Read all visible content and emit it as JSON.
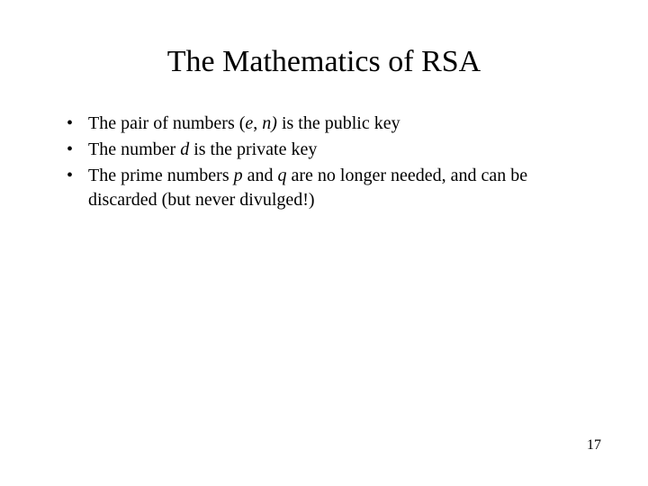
{
  "slide": {
    "title": "The Mathematics of RSA",
    "bullets": [
      {
        "pre": "The pair of numbers (",
        "var1": "e",
        "mid1": ", ",
        "var2": "n)",
        "post": " is the public key"
      },
      {
        "pre": "The number ",
        "var1": "d",
        "post": " is the private key"
      },
      {
        "pre": "The prime numbers ",
        "var1": "p",
        "mid1": " and ",
        "var2": "q",
        "post": " are no longer needed, and can be discarded (but never divulged!)"
      }
    ],
    "page_number": "17"
  },
  "style": {
    "background_color": "#ffffff",
    "text_color": "#000000",
    "title_fontsize": 34,
    "body_fontsize": 20,
    "page_number_fontsize": 16,
    "font_family": "Times New Roman"
  }
}
